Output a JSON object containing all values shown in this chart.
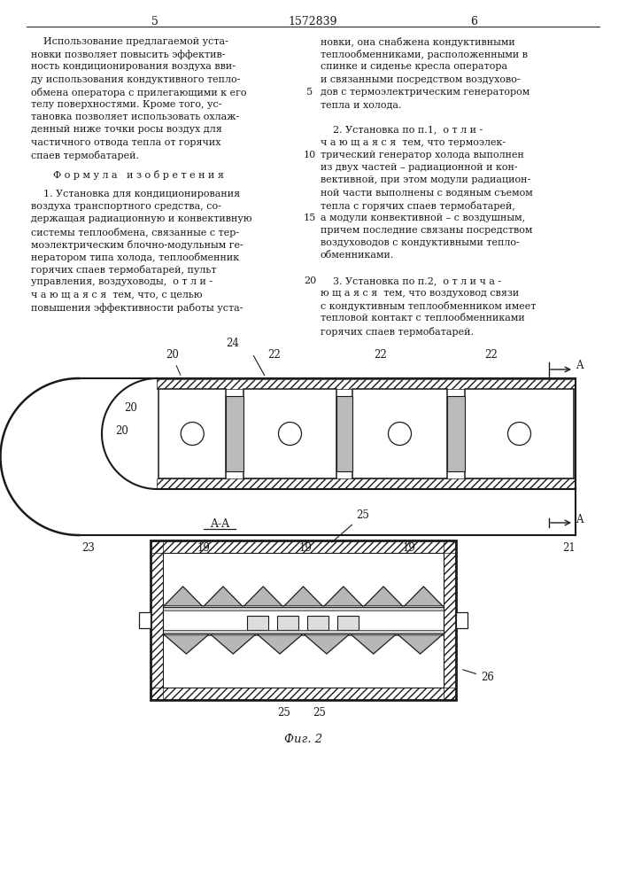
{
  "page_number_left": "5",
  "page_number_center": "1572839",
  "page_number_right": "6",
  "bg_color": "#ffffff",
  "text_color": "#1a1a1a",
  "left_column_text": [
    "    Использование предлагаемой уста-",
    "новки позволяет повысить эффектив-",
    "ность кондиционирования воздуха вви-",
    "ду использования кондуктивного тепло-",
    "обмена оператора с прилегающими к его",
    "телу поверхностями. Кроме того, ус-",
    "тановка позволяет использовать охлаж-",
    "денный ниже точки росы воздух для",
    "частичного отвода тепла от горячих",
    "спаев термобатарей."
  ],
  "formula_heading": "Ф о р м у л а   и з о б р е т е н и я",
  "claim1_text": [
    "    1. Установка для кондиционирования",
    "воздуха транспортного средства, со-",
    "держащая радиационную и конвективную",
    "системы теплообмена, связанные с тер-",
    "моэлектрическим блочно-модульным ге-",
    "нератором типа холода, теплообменник",
    "горячих спаев термобатарей, пульт",
    "управления, воздуховоды,  о т л и -",
    "ч а ю щ а я с я  тем, что, с целью",
    "повышения эффективности работы уста-"
  ],
  "right_column_text": [
    "новки, она снабжена кондуктивными",
    "теплообменниками, расположенными в",
    "спинке и сиденье кресла оператора",
    "и связанными посредством воздухово-",
    "дов с термоэлектрическим генератором",
    "тепла и холода.",
    "",
    "    2. Установка по п.1,  о т л и -",
    "ч а ю щ а я с я  тем, что термоэлек-",
    "трический генератор холода выполнен",
    "из двух частей – радиационной и кон-",
    "вективной, при этом модули радиацион-",
    "ной части выполнены с водяным съемом",
    "тепла с горячих спаев термобатарей,",
    "а модули конвективной – с воздушным,",
    "причем последние связаны посредством",
    "воздуховодов с кондуктивными тепло-",
    "обменниками.",
    "",
    "    3. Установка по п.2,  о т л и ч а -",
    "ю щ а я с я  тем, что воздуховод связи",
    "с кондуктивным теплообменником имеет",
    "тепловой контакт с теплообменниками",
    "горячих спаев термобатарей."
  ]
}
